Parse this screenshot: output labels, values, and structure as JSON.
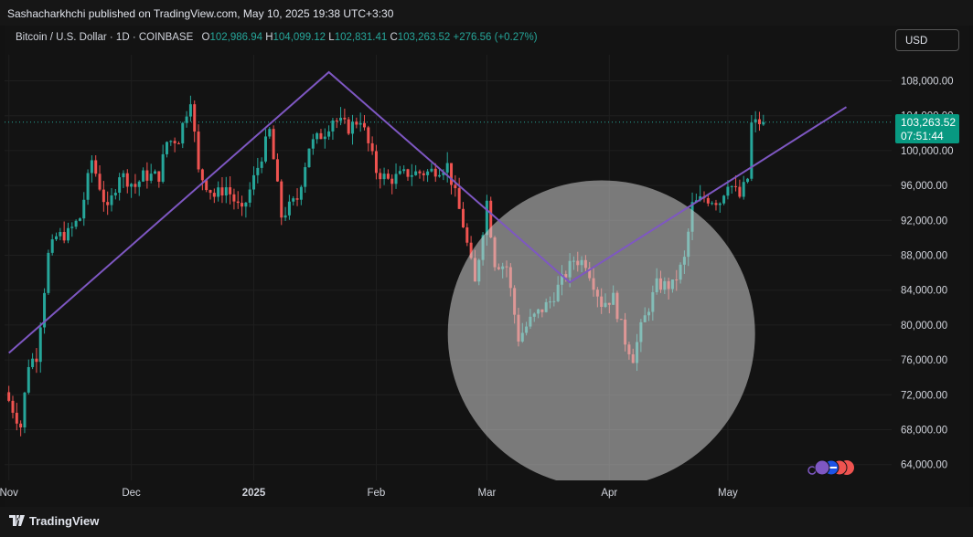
{
  "header": {
    "publisher": "Sashacharkhchi published on TradingView.com, May 10, 2025 19:38 UTC+3:30"
  },
  "legend": {
    "symbol": "Bitcoin / U.S. Dollar · 1D · COINBASE",
    "open_label": "O",
    "open": "102,986.94",
    "high_label": "H",
    "high": "104,099.12",
    "low_label": "L",
    "low": "102,831.41",
    "close_label": "C",
    "close": "103,263.52",
    "change": "+276.56 (+0.27%)"
  },
  "currency_button": "USD",
  "price_tag": {
    "price": "103,263.52",
    "countdown": "07:51:44"
  },
  "footer": {
    "brand": "TradingView"
  },
  "colors": {
    "up": "#26a69a",
    "down": "#ef5350",
    "trendline": "#7e57c2",
    "background": "#131313",
    "grid": "#1f1f1f"
  },
  "chart_data": {
    "type": "candlestick",
    "x_tick_labels": [
      "Nov",
      "Dec",
      "2025",
      "Feb",
      "Mar",
      "Apr",
      "May"
    ],
    "y_tick_labels": [
      "108,000.00",
      "104,000.00",
      "100,000.00",
      "96,000.00",
      "92,000.00",
      "88,000.00",
      "84,000.00",
      "80,000.00",
      "76,000.00",
      "72,000.00",
      "68,000.00",
      "64,000.00"
    ],
    "y_ticks": [
      108000,
      104000,
      100000,
      96000,
      92000,
      88000,
      84000,
      80000,
      76000,
      72000,
      68000,
      64000
    ],
    "ylim": [
      62000,
      110500
    ],
    "current_price": 103263.52,
    "grid": true,
    "trendline_points": [
      {
        "date": "2024-10-31",
        "price": 76800
      },
      {
        "date": "2025-01-20",
        "price": 109000
      },
      {
        "date": "2025-03-22",
        "price": 84900
      },
      {
        "date": "2025-05-31",
        "price": 105000
      }
    ],
    "highlight_circle": {
      "center_date": "2025-03-30",
      "center_price": 79000
    },
    "close_path": [
      {
        "date": "2024-10-31",
        "price": 72300
      },
      {
        "date": "2024-11-04",
        "price": 68400
      },
      {
        "date": "2024-11-06",
        "price": 75600
      },
      {
        "date": "2024-11-08",
        "price": 76500
      },
      {
        "date": "2024-11-11",
        "price": 88000
      },
      {
        "date": "2024-11-13",
        "price": 90100
      },
      {
        "date": "2024-11-16",
        "price": 90500
      },
      {
        "date": "2024-11-19",
        "price": 92300
      },
      {
        "date": "2024-11-22",
        "price": 98900
      },
      {
        "date": "2024-11-26",
        "price": 93000
      },
      {
        "date": "2024-11-29",
        "price": 97400
      },
      {
        "date": "2024-12-03",
        "price": 95900
      },
      {
        "date": "2024-12-05",
        "price": 97100
      },
      {
        "date": "2024-12-09",
        "price": 97100
      },
      {
        "date": "2024-12-11",
        "price": 101000
      },
      {
        "date": "2024-12-14",
        "price": 101400
      },
      {
        "date": "2024-12-17",
        "price": 106100
      },
      {
        "date": "2024-12-19",
        "price": 97500
      },
      {
        "date": "2024-12-23",
        "price": 94800
      },
      {
        "date": "2024-12-26",
        "price": 95800
      },
      {
        "date": "2024-12-30",
        "price": 92800
      },
      {
        "date": "2025-01-03",
        "price": 98100
      },
      {
        "date": "2025-01-06",
        "price": 102200
      },
      {
        "date": "2025-01-09",
        "price": 92500
      },
      {
        "date": "2025-01-13",
        "price": 94500
      },
      {
        "date": "2025-01-16",
        "price": 100500
      },
      {
        "date": "2025-01-20",
        "price": 102200
      },
      {
        "date": "2025-01-22",
        "price": 103700
      },
      {
        "date": "2025-01-26",
        "price": 102600
      },
      {
        "date": "2025-01-29",
        "price": 103700
      },
      {
        "date": "2025-02-02",
        "price": 97700
      },
      {
        "date": "2025-02-05",
        "price": 96600
      },
      {
        "date": "2025-02-10",
        "price": 97400
      },
      {
        "date": "2025-02-15",
        "price": 97500
      },
      {
        "date": "2025-02-20",
        "price": 98300
      },
      {
        "date": "2025-02-24",
        "price": 91500
      },
      {
        "date": "2025-02-27",
        "price": 84700
      },
      {
        "date": "2025-03-02",
        "price": 94200
      },
      {
        "date": "2025-03-04",
        "price": 87200
      },
      {
        "date": "2025-03-07",
        "price": 86700
      },
      {
        "date": "2025-03-10",
        "price": 78500
      },
      {
        "date": "2025-03-13",
        "price": 80500
      },
      {
        "date": "2025-03-18",
        "price": 82700
      },
      {
        "date": "2025-03-24",
        "price": 87500
      },
      {
        "date": "2025-03-27",
        "price": 87200
      },
      {
        "date": "2025-03-31",
        "price": 82500
      },
      {
        "date": "2025-04-03",
        "price": 83100
      },
      {
        "date": "2025-04-06",
        "price": 78200
      },
      {
        "date": "2025-04-08",
        "price": 76300
      },
      {
        "date": "2025-04-10",
        "price": 79600
      },
      {
        "date": "2025-04-14",
        "price": 84600
      },
      {
        "date": "2025-04-18",
        "price": 84500
      },
      {
        "date": "2025-04-21",
        "price": 87500
      },
      {
        "date": "2025-04-23",
        "price": 93700
      },
      {
        "date": "2025-04-26",
        "price": 94600
      },
      {
        "date": "2025-04-30",
        "price": 94200
      },
      {
        "date": "2025-05-02",
        "price": 96500
      },
      {
        "date": "2025-05-05",
        "price": 94700
      },
      {
        "date": "2025-05-07",
        "price": 96800
      },
      {
        "date": "2025-05-08",
        "price": 103000
      },
      {
        "date": "2025-05-10",
        "price": 103263.52
      }
    ]
  }
}
